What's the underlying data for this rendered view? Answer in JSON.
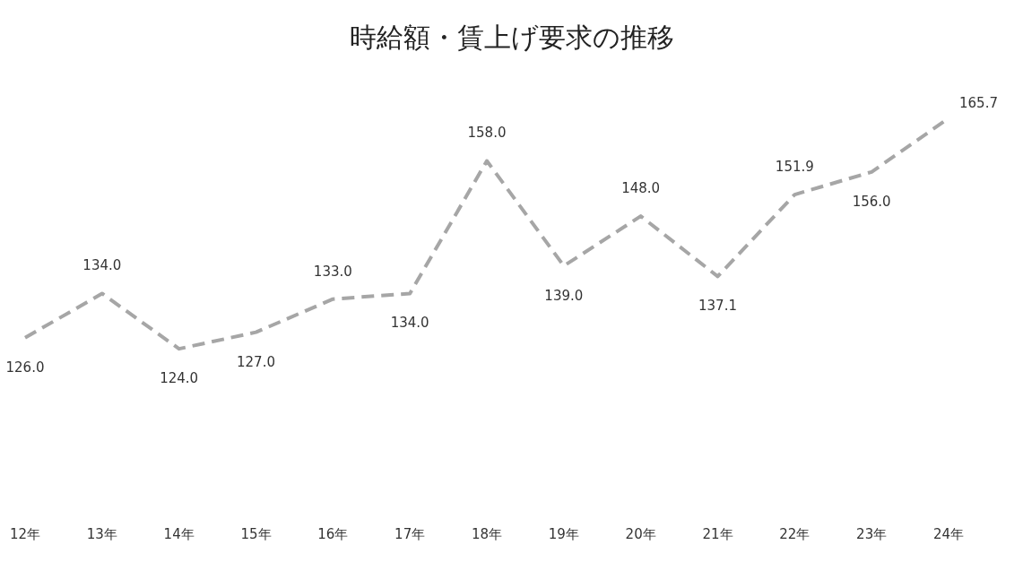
{
  "chart_data": {
    "type": "line",
    "title": "時給額・賃上げ要求の推移",
    "categories": [
      "12年",
      "13年",
      "14年",
      "15年",
      "16年",
      "17年",
      "18年",
      "19年",
      "20年",
      "21年",
      "22年",
      "23年",
      "24年"
    ],
    "series": [
      {
        "color": "#a6a6a6",
        "values": [
          126.0,
          134.0,
          124.0,
          127.0,
          133.0,
          134.0,
          158.0,
          139.0,
          148.0,
          137.1,
          151.9,
          156.0,
          165.7
        ],
        "value_labels": [
          "126.0",
          "134.0",
          "124.0",
          "127.0",
          "133.0",
          "134.0",
          "158.0",
          "139.0",
          "148.0",
          "137.1",
          "151.9",
          "156.0",
          "165.7"
        ]
      }
    ],
    "line_style": "dashed",
    "marker": "none",
    "grid": false,
    "legend": false,
    "tick_labels": "x"
  }
}
